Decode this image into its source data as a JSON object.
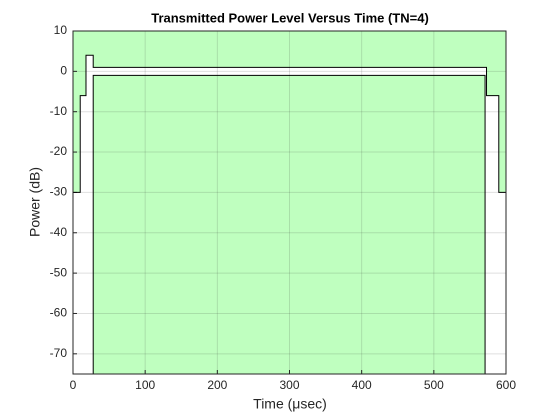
{
  "chart_data": {
    "type": "line",
    "title": "Transmitted Power Level Versus Time (TN=4)",
    "x_label": "Time  (μsec)",
    "y_label": "Power (dB)",
    "xlim": [
      0,
      600
    ],
    "xticks": [
      0,
      100,
      200,
      300,
      400,
      500,
      600
    ],
    "ylim": [
      -75,
      10
    ],
    "yticks": [
      -70,
      -60,
      -50,
      -40,
      -30,
      -20,
      -10,
      0,
      10
    ],
    "grid": true,
    "fill_color": "#bfffbf",
    "series": [
      {
        "color": "#000000",
        "x": [
          0,
          10,
          10,
          18,
          18,
          28,
          28,
          573,
          573,
          590,
          590,
          600
        ],
        "values": [
          -30,
          -30,
          -6,
          -6,
          4,
          4,
          1,
          1,
          -6,
          -6,
          -30,
          -30
        ]
      },
      {
        "color": "#000000",
        "x": [
          28,
          28,
          571,
          571
        ],
        "values": [
          -75,
          -1,
          -1,
          -75
        ]
      }
    ]
  }
}
